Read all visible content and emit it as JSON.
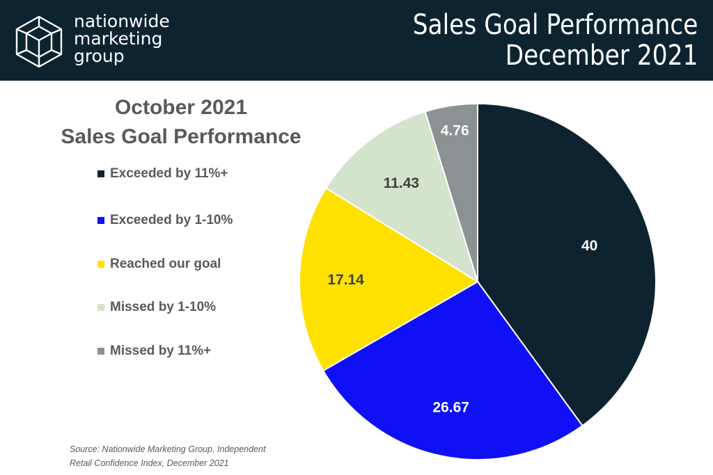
{
  "header": {
    "brand_lines": [
      "nationwide",
      "marketing",
      "group"
    ],
    "title_line1": "Sales Goal Performance",
    "title_line2": "December 2021",
    "logo_icon": "geometric-cube-icon"
  },
  "chart_data": {
    "type": "pie",
    "title_line1": "October 2021",
    "title_line2": "Sales Goal Performance",
    "legend_position": "left",
    "slices": [
      {
        "name": "Exceeded by 11%+",
        "value": 40,
        "label": "40",
        "color": "#0d2330",
        "label_color": "#ffffff"
      },
      {
        "name": "Exceeded by 1-10%",
        "value": 26.67,
        "label": "26.67",
        "color": "#0f10f5",
        "label_color": "#ffffff"
      },
      {
        "name": "Reached our goal",
        "value": 17.14,
        "label": "17.14",
        "color": "#ffe100",
        "label_color": "#404040"
      },
      {
        "name": "Missed by 1-10%",
        "value": 11.43,
        "label": "11.43",
        "color": "#d3e3cc",
        "label_color": "#404040"
      },
      {
        "name": "Missed by 11%+",
        "value": 4.76,
        "label": "4.76",
        "color": "#8c9293",
        "label_color": "#ffffff"
      }
    ]
  },
  "source": {
    "line1": "Source: Nationwide Marketing Group, Independent",
    "line2": "Retail Confidence Index, December 2021"
  }
}
